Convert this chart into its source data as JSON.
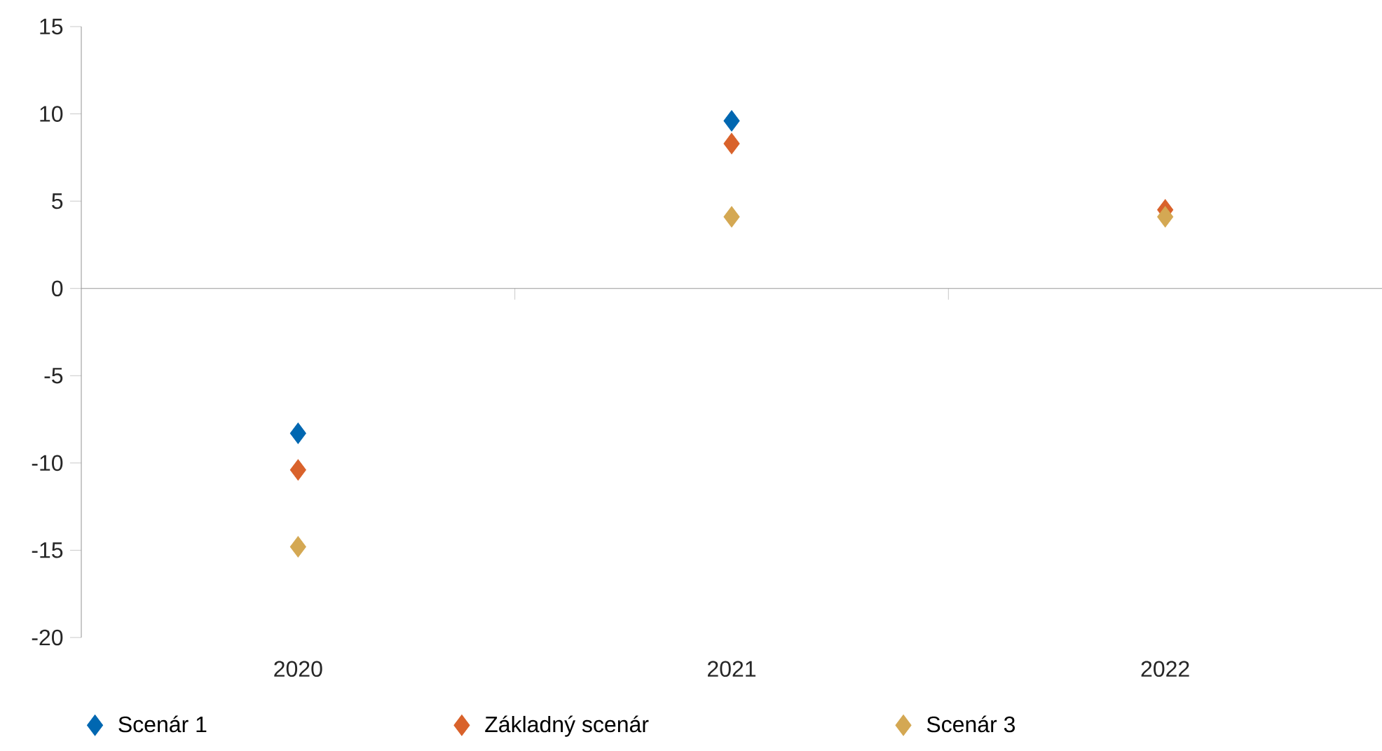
{
  "chart_data": {
    "type": "scatter",
    "categories": [
      "2020",
      "2021",
      "2022"
    ],
    "series": [
      {
        "name": "Scenár 1",
        "color": "#0067b1",
        "values": [
          -8.3,
          9.6,
          null
        ]
      },
      {
        "name": "Základný scenár",
        "color": "#d9622b",
        "values": [
          -10.4,
          8.3,
          4.5
        ]
      },
      {
        "name": "Scenár 3",
        "color": "#d4a853",
        "values": [
          -14.8,
          4.1,
          4.1
        ]
      }
    ],
    "ylim": [
      -20,
      15
    ],
    "yticks": [
      -20,
      -15,
      -10,
      -5,
      0,
      5,
      10,
      15
    ],
    "ref_lines": [
      {
        "axis": "y",
        "value": 0,
        "color": "#999999"
      }
    ],
    "grid": false,
    "legend": "bottom",
    "marker": "diamond"
  }
}
